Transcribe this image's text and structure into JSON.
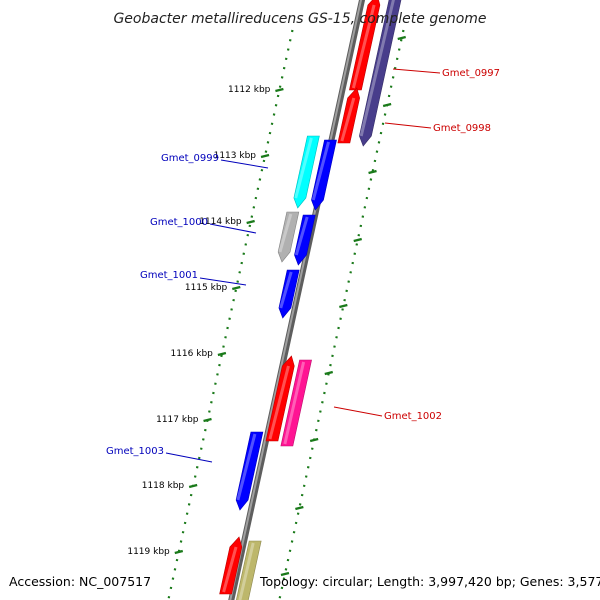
{
  "title": "Geobacter metallireducens GS-15, complete genome",
  "accession": "Accession: NC_007517",
  "topology": "Topology: circular; Length: 3,997,420 bp; Genes: 3,577",
  "colors": {
    "backbone": "#808080",
    "tick": "#1a7a1a",
    "forward_label": "#cc0000",
    "reverse_label": "#0000bb"
  },
  "kbp_ticks": [
    "1112 kbp",
    "1113 kbp",
    "1114 kbp",
    "1115 kbp",
    "1116 kbp",
    "1117 kbp",
    "1118 kbp",
    "1119 kbp"
  ],
  "genes": [
    {
      "label": "Gmet_0997",
      "strand": "forward",
      "color": "#ff0000"
    },
    {
      "label": "Gmet_0998",
      "strand": "forward",
      "color": "#ff0000"
    },
    {
      "label": "",
      "strand": "forward",
      "color": "#483d8b"
    },
    {
      "label": "Gmet_0999",
      "strand": "reverse",
      "color": "#00ffff"
    },
    {
      "label": "",
      "strand": "reverse",
      "color": "#0000ff"
    },
    {
      "label": "Gmet_1000",
      "strand": "reverse",
      "color": "#b0b0b0"
    },
    {
      "label": "",
      "strand": "reverse",
      "color": "#0000ff"
    },
    {
      "label": "Gmet_1001",
      "strand": "reverse",
      "color": "#0000ff"
    },
    {
      "label": "",
      "strand": "forward",
      "color": "#ff0000"
    },
    {
      "label": "Gmet_1002",
      "strand": "forward",
      "color": "#ff1493"
    },
    {
      "label": "Gmet_1003",
      "strand": "reverse",
      "color": "#0000ff"
    },
    {
      "label": "",
      "strand": "forward",
      "color": "#ff0000"
    },
    {
      "label": "",
      "strand": "forward",
      "color": "#bdb76b"
    }
  ]
}
